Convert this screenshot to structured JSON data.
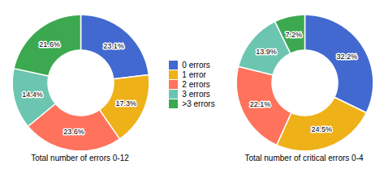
{
  "chart_data": [
    {
      "type": "pie",
      "title": "Total number of errors 0-12",
      "categories": [
        "0 errors",
        "1 error",
        "2 errors",
        "3 errors",
        ">3 errors"
      ],
      "values": [
        23.1,
        17.3,
        23.6,
        14.4,
        21.6
      ],
      "value_labels": [
        "23.1%",
        "17.3%",
        "23.6%",
        "14.4%",
        "21.6%"
      ],
      "data_labels": true,
      "legend": "center"
    },
    {
      "type": "pie",
      "title": "Total number of critical errors 0-4",
      "categories": [
        "0 errors",
        "1 error",
        "2 errors",
        "3 errors",
        ">3 errors"
      ],
      "values": [
        32.2,
        24.5,
        22.1,
        13.9,
        7.2
      ],
      "value_labels": [
        "32.2%",
        "24.5%",
        "22.1%",
        "13.9%",
        "7.2%"
      ],
      "data_labels": true
    }
  ]
}
